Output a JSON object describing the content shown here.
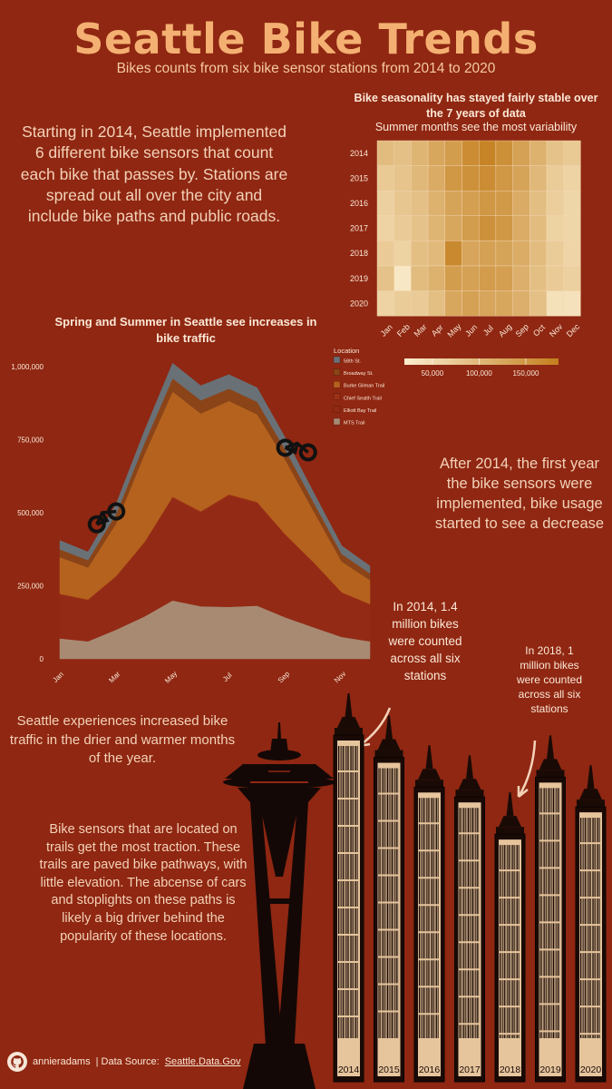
{
  "title": "Seattle Bike Trends",
  "subtitle": "Bikes counts from six bike sensor stations from 2014 to 2020",
  "intro": "Starting in 2014, Seattle implemented 6 different bike sensors that count each bike that passes by. Stations are spread out all over the city and include bike paths and public roads.",
  "notes": {
    "after_2014": "After 2014, the first year  the bike sensors were implemented, bike usage started to see a decrease",
    "count_2014": "In 2014, 1.4 million bikes were counted across all six stations",
    "count_2018": "In 2018, 1 million bikes were counted across all six stations",
    "summer": "Seattle experiences increased bike traffic in the drier and warmer months of the year.",
    "trails": "Bike sensors that are located on trails get the most traction.  These trails are paved bike pathways, with little elevation. The abcense of cars and stoplights on these paths is likely a big driver behind the popularity of these locations."
  },
  "footer": {
    "user": "annieradams",
    "source_prefix": "| Data Source:",
    "source_link": "Seattle.Data.Gov"
  },
  "colors": {
    "background": "#8f2712",
    "title": "#f4b072",
    "heat_low": "#fbeecf",
    "heat_high": "#c47f1e",
    "buildings": "#1a0a06",
    "building_base": "#e6c59d"
  },
  "chart_data": [
    {
      "type": "heatmap",
      "title": "Bike seasonality has stayed fairly stable over the 7 years of data",
      "subtitle": "Summer months see the most variability",
      "rows": [
        "2014",
        "2015",
        "2016",
        "2017",
        "2018",
        "2019",
        "2020"
      ],
      "columns": [
        "Jan",
        "Feb",
        "Mar",
        "Apr",
        "May",
        "Jun",
        "Jul",
        "Aug",
        "Sep",
        "Oct",
        "Nov",
        "Dec"
      ],
      "values": [
        [
          95000,
          88000,
          105000,
          125000,
          140000,
          165000,
          178000,
          160000,
          135000,
          110000,
          85000,
          75000
        ],
        [
          75000,
          82000,
          100000,
          120000,
          150000,
          158000,
          165000,
          150000,
          130000,
          100000,
          70000,
          60000
        ],
        [
          65000,
          80000,
          88000,
          110000,
          130000,
          138000,
          150000,
          145000,
          120000,
          92000,
          68000,
          55000
        ],
        [
          60000,
          72000,
          85000,
          105000,
          125000,
          140000,
          158000,
          150000,
          118000,
          95000,
          62000,
          55000
        ],
        [
          72000,
          62000,
          90000,
          98000,
          170000,
          128000,
          135000,
          130000,
          118000,
          95000,
          70000,
          58000
        ],
        [
          85000,
          30000,
          95000,
          110000,
          140000,
          135000,
          142000,
          138000,
          112000,
          90000,
          72000,
          65000
        ],
        [
          60000,
          70000,
          72000,
          90000,
          125000,
          135000,
          128000,
          125000,
          112000,
          88000,
          40000,
          38000
        ]
      ],
      "legend": {
        "ticks": [
          50000,
          100000,
          150000
        ],
        "tick_labels": [
          "50,000",
          "100,000",
          "150,000"
        ],
        "range": [
          20000,
          185000
        ]
      }
    },
    {
      "type": "area",
      "stacked": true,
      "title": "Spring and Summer in Seattle see increases in bike traffic",
      "legend_title": "Location",
      "legend_position": "right",
      "x": [
        "Jan",
        "Feb",
        "Mar",
        "Apr",
        "May",
        "Jun",
        "Jul",
        "Aug",
        "Sep",
        "Oct",
        "Nov",
        "Dec"
      ],
      "x_tick_labels": [
        "Jan",
        "Mar",
        "May",
        "Jul",
        "Sep",
        "Nov"
      ],
      "y_ticks": [
        0,
        250000,
        500000,
        750000,
        1000000
      ],
      "y_tick_labels": [
        "0",
        "250,000",
        "500,000",
        "750,000",
        "1,000,000"
      ],
      "ylim": [
        0,
        1050000
      ],
      "series": [
        {
          "name": "MTS Trail",
          "color": "#a88a73",
          "values": [
            70000,
            60000,
            100000,
            145000,
            200000,
            180000,
            178000,
            182000,
            142000,
            108000,
            75000,
            60000
          ]
        },
        {
          "name": "Elliott Bay Trail",
          "color": "#922a15",
          "values": [
            150000,
            140000,
            180000,
            250000,
            350000,
            320000,
            380000,
            350000,
            280000,
            220000,
            150000,
            125000
          ]
        },
        {
          "name": "Chief Sealth Trail",
          "color": "#9a3016",
          "values": [
            3000,
            3000,
            4000,
            5000,
            5000,
            5000,
            5000,
            5000,
            4000,
            3000,
            3000,
            3000
          ]
        },
        {
          "name": "Burke Gilman Trail",
          "color": "#b5621e",
          "values": [
            125000,
            110000,
            180000,
            300000,
            360000,
            335000,
            320000,
            300000,
            255000,
            175000,
            105000,
            82000
          ]
        },
        {
          "name": "Broadway St.",
          "color": "#8a4418",
          "values": [
            27000,
            25000,
            32000,
            38000,
            45000,
            45000,
            42000,
            43000,
            35000,
            30000,
            26000,
            23000
          ]
        },
        {
          "name": "58th St.",
          "color": "#697177",
          "values": [
            30000,
            28000,
            35000,
            42000,
            52000,
            50000,
            48000,
            48000,
            40000,
            34000,
            28000,
            25000
          ]
        }
      ]
    },
    {
      "type": "bar",
      "title": "",
      "categories": [
        "2014",
        "2015",
        "2016",
        "2017",
        "2018",
        "2019",
        "2020"
      ],
      "values": [
        1400000,
        1310000,
        1190000,
        1150000,
        1000000,
        1230000,
        1110000
      ]
    }
  ]
}
